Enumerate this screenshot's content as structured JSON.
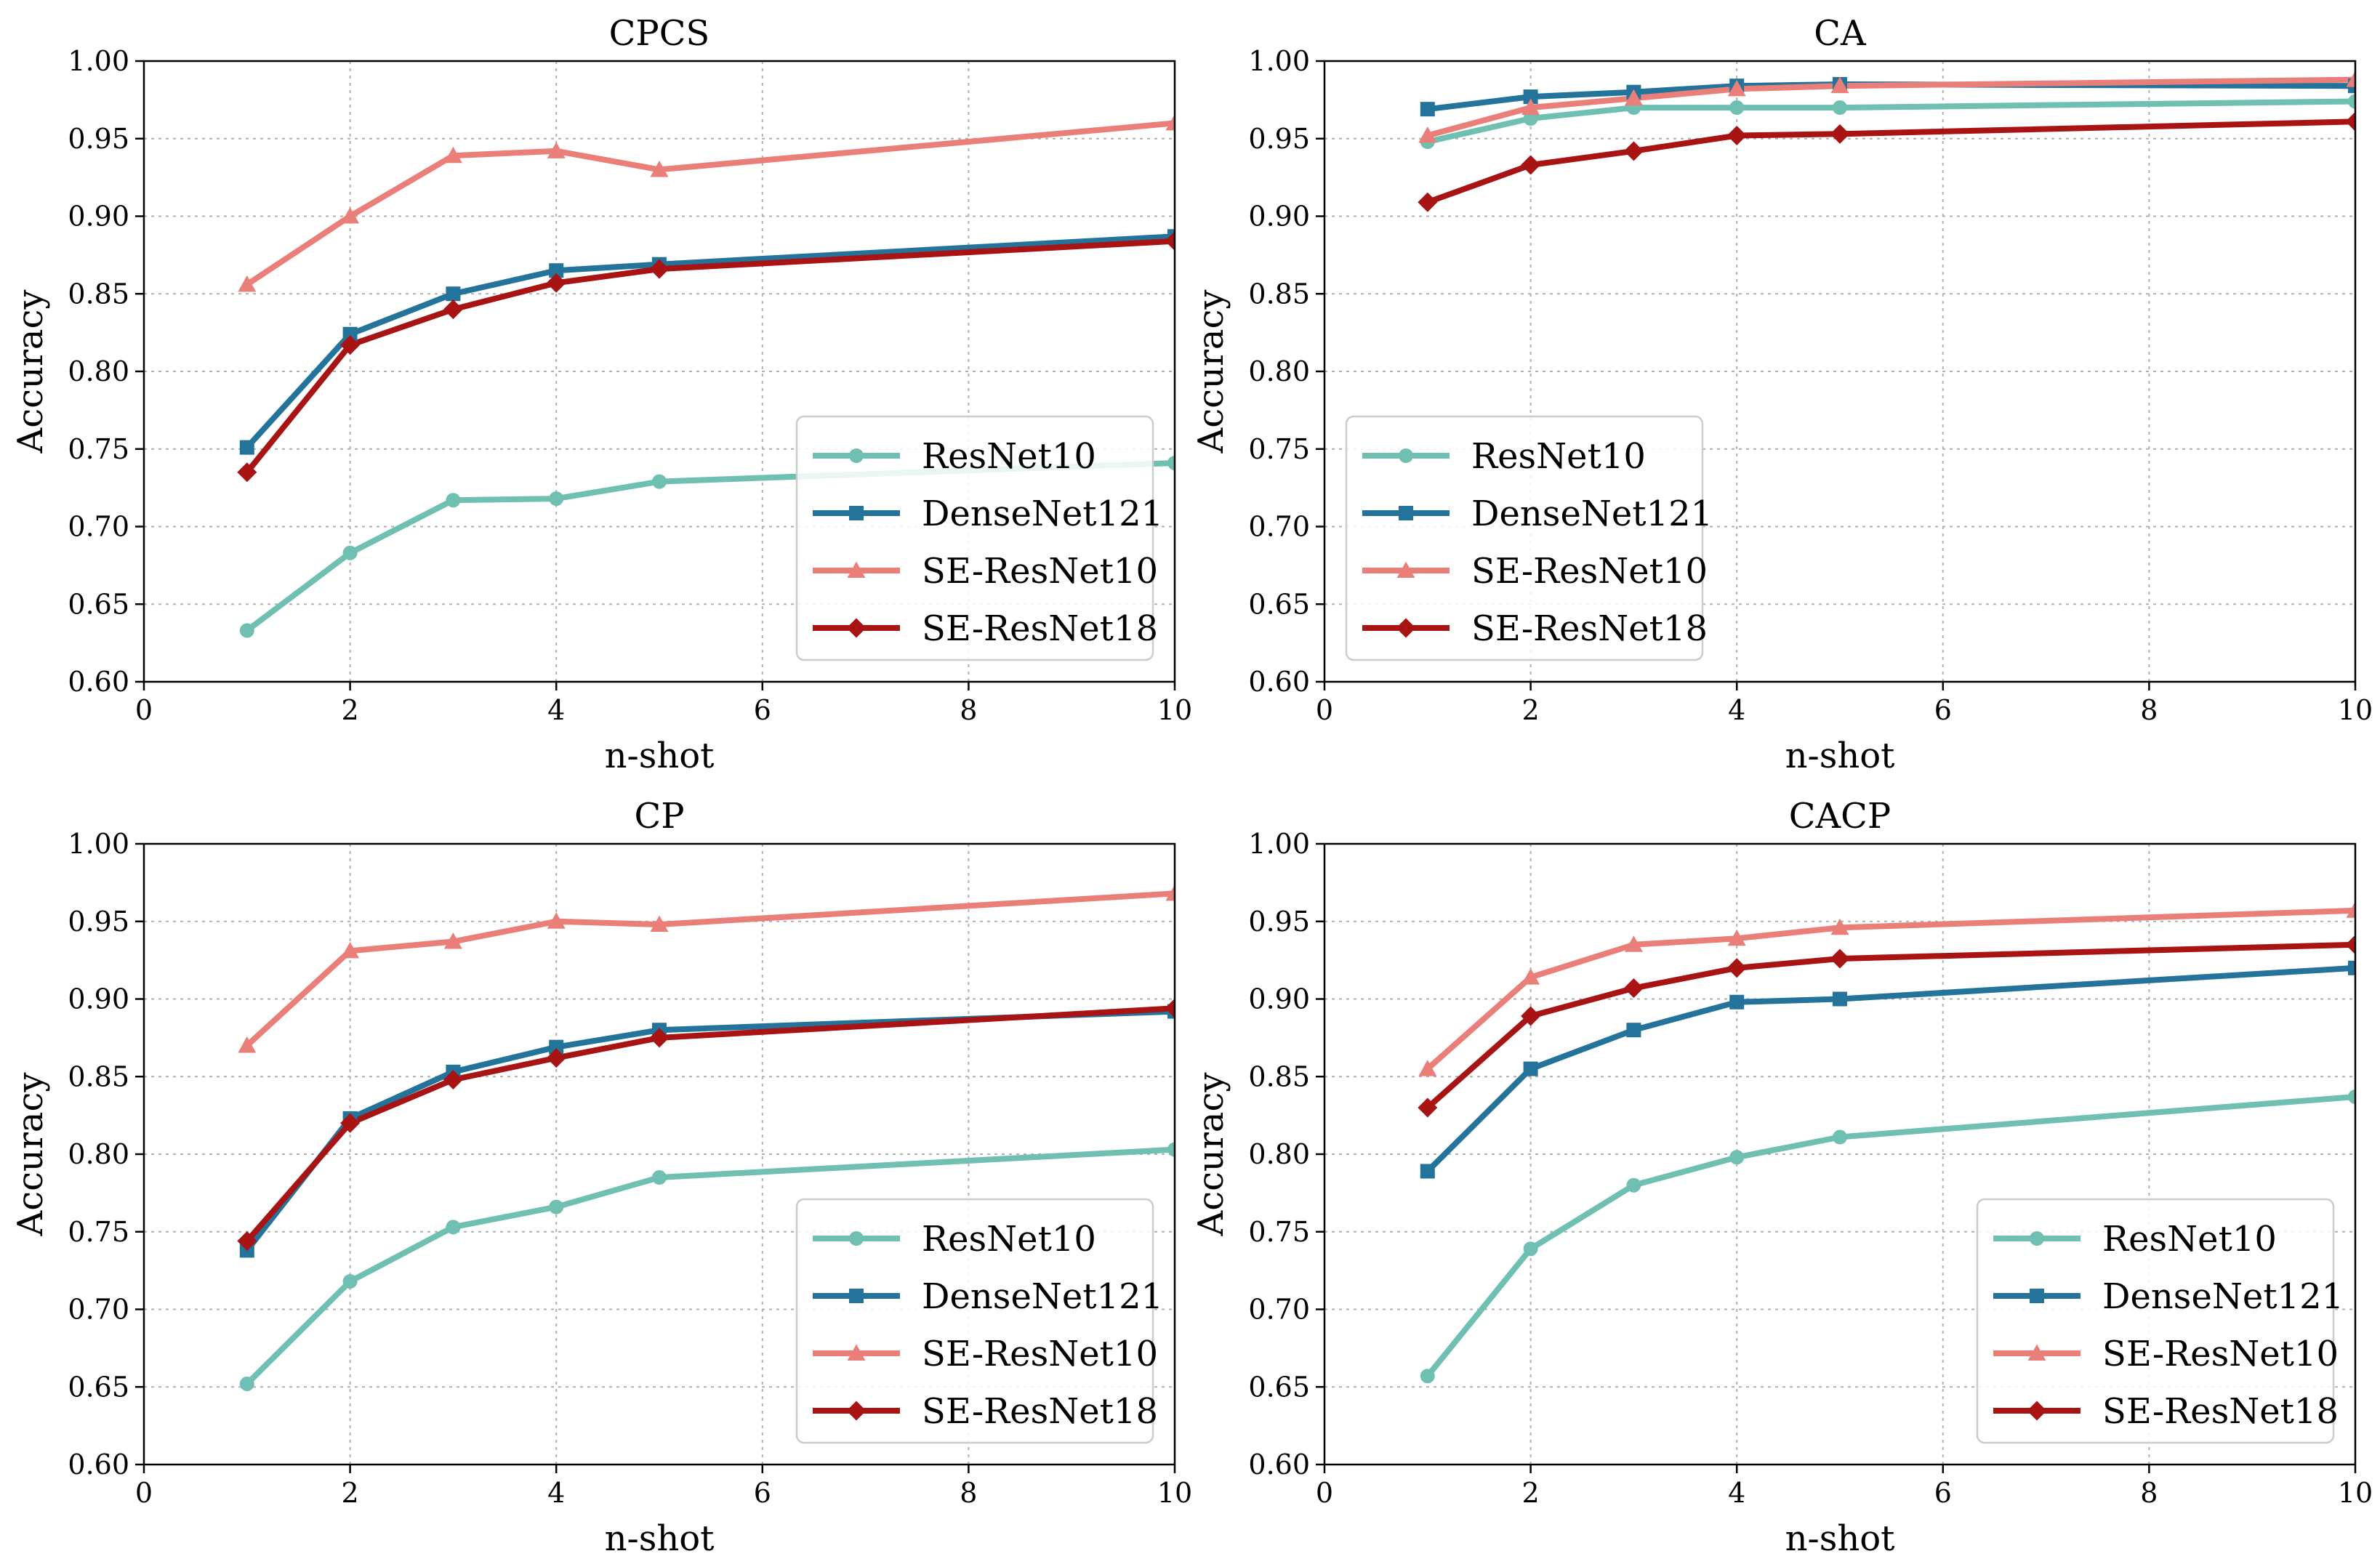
{
  "colors": {
    "ResNet10": "#6fbfb2",
    "DenseNet121": "#24739a",
    "SE-ResNet10": "#ea7f7a",
    "SE-ResNet18": "#a81313"
  },
  "markers": {
    "ResNet10": "circle",
    "DenseNet121": "square",
    "SE-ResNet10": "triangle",
    "SE-ResNet18": "diamond"
  },
  "chart_data": [
    {
      "type": "line",
      "title": "CPCS",
      "xlabel": "n-shot",
      "ylabel": "Accuracy",
      "xlim": [
        0,
        10
      ],
      "ylim": [
        0.6,
        1.0
      ],
      "xticks": [
        "0",
        "2",
        "4",
        "6",
        "8",
        "10"
      ],
      "yticks": [
        "0.60",
        "0.65",
        "0.70",
        "0.75",
        "0.80",
        "0.85",
        "0.90",
        "0.95",
        "1.00"
      ],
      "grid": true,
      "legend_position": "lower-right",
      "x": [
        1,
        2,
        3,
        4,
        5,
        10
      ],
      "series": [
        {
          "name": "ResNet10",
          "values": [
            0.633,
            0.683,
            0.717,
            0.718,
            0.729,
            0.741
          ]
        },
        {
          "name": "DenseNet121",
          "values": [
            0.751,
            0.824,
            0.85,
            0.865,
            0.869,
            0.887
          ]
        },
        {
          "name": "SE-ResNet10",
          "values": [
            0.856,
            0.9,
            0.939,
            0.942,
            0.93,
            0.96
          ]
        },
        {
          "name": "SE-ResNet18",
          "values": [
            0.735,
            0.817,
            0.84,
            0.857,
            0.866,
            0.884
          ]
        }
      ]
    },
    {
      "type": "line",
      "title": "CA",
      "xlabel": "n-shot",
      "ylabel": "Accuracy",
      "xlim": [
        0,
        10
      ],
      "ylim": [
        0.6,
        1.0
      ],
      "xticks": [
        "0",
        "2",
        "4",
        "6",
        "8",
        "10"
      ],
      "yticks": [
        "0.60",
        "0.65",
        "0.70",
        "0.75",
        "0.80",
        "0.85",
        "0.90",
        "0.95",
        "1.00"
      ],
      "grid": true,
      "legend_position": "lower-left",
      "x": [
        1,
        2,
        3,
        4,
        5,
        10
      ],
      "series": [
        {
          "name": "ResNet10",
          "values": [
            0.948,
            0.963,
            0.97,
            0.97,
            0.97,
            0.974
          ]
        },
        {
          "name": "DenseNet121",
          "values": [
            0.969,
            0.977,
            0.98,
            0.984,
            0.985,
            0.984
          ]
        },
        {
          "name": "SE-ResNet10",
          "values": [
            0.952,
            0.97,
            0.976,
            0.982,
            0.984,
            0.988
          ]
        },
        {
          "name": "SE-ResNet18",
          "values": [
            0.909,
            0.933,
            0.942,
            0.952,
            0.953,
            0.961
          ]
        }
      ]
    },
    {
      "type": "line",
      "title": "CP",
      "xlabel": "n-shot",
      "ylabel": "Accuracy",
      "xlim": [
        0,
        10
      ],
      "ylim": [
        0.6,
        1.0
      ],
      "xticks": [
        "0",
        "2",
        "4",
        "6",
        "8",
        "10"
      ],
      "yticks": [
        "0.60",
        "0.65",
        "0.70",
        "0.75",
        "0.80",
        "0.85",
        "0.90",
        "0.95",
        "1.00"
      ],
      "grid": true,
      "legend_position": "lower-right",
      "x": [
        1,
        2,
        3,
        4,
        5,
        10
      ],
      "series": [
        {
          "name": "ResNet10",
          "values": [
            0.652,
            0.718,
            0.753,
            0.766,
            0.785,
            0.803
          ]
        },
        {
          "name": "DenseNet121",
          "values": [
            0.738,
            0.823,
            0.853,
            0.869,
            0.88,
            0.892
          ]
        },
        {
          "name": "SE-ResNet10",
          "values": [
            0.87,
            0.931,
            0.937,
            0.95,
            0.948,
            0.968
          ]
        },
        {
          "name": "SE-ResNet18",
          "values": [
            0.744,
            0.82,
            0.848,
            0.862,
            0.875,
            0.894
          ]
        }
      ]
    },
    {
      "type": "line",
      "title": "CACP",
      "xlabel": "n-shot",
      "ylabel": "Accuracy",
      "xlim": [
        0,
        10
      ],
      "ylim": [
        0.6,
        1.0
      ],
      "xticks": [
        "0",
        "2",
        "4",
        "6",
        "8",
        "10"
      ],
      "yticks": [
        "0.60",
        "0.65",
        "0.70",
        "0.75",
        "0.80",
        "0.85",
        "0.90",
        "0.95",
        "1.00"
      ],
      "grid": true,
      "legend_position": "lower-right",
      "x": [
        1,
        2,
        3,
        4,
        5,
        10
      ],
      "series": [
        {
          "name": "ResNet10",
          "values": [
            0.657,
            0.739,
            0.78,
            0.798,
            0.811,
            0.837
          ]
        },
        {
          "name": "DenseNet121",
          "values": [
            0.789,
            0.855,
            0.88,
            0.898,
            0.9,
            0.92
          ]
        },
        {
          "name": "SE-ResNet10",
          "values": [
            0.855,
            0.914,
            0.935,
            0.939,
            0.946,
            0.957
          ]
        },
        {
          "name": "SE-ResNet18",
          "values": [
            0.83,
            0.889,
            0.907,
            0.92,
            0.926,
            0.935
          ]
        }
      ]
    }
  ]
}
